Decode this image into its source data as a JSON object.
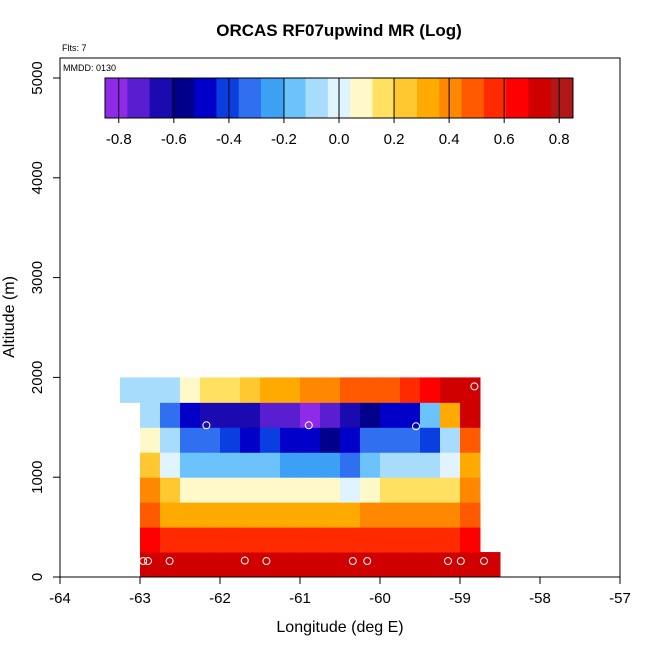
{
  "chart_data": {
    "type": "heatmap",
    "title": "ORCAS RF07upwind MR (Log)",
    "xlabel": "Longitude (deg E)",
    "ylabel": "Altitude (m)",
    "xlim": [
      -64,
      -57
    ],
    "ylim": [
      0,
      5200
    ],
    "x_ticks": [
      -64,
      -63,
      -62,
      -61,
      -60,
      -59,
      -58,
      -57
    ],
    "y_ticks": [
      0,
      1000,
      2000,
      3000,
      4000,
      5000
    ],
    "annotations": {
      "flights": "Flts: 7",
      "date": "MMDD: 0130"
    },
    "colorbar": {
      "range": [
        -0.85,
        0.85
      ],
      "ticks": [
        -0.8,
        -0.6,
        -0.4,
        -0.2,
        0.0,
        0.2,
        0.4,
        0.6,
        0.8
      ],
      "tick_labels": [
        "-0.8",
        "-0.6",
        "-0.4",
        "-0.2",
        "0.0",
        "0.2",
        "0.4",
        "0.6",
        "0.8"
      ],
      "colors": [
        "#8f2be8",
        "#5a1ed1",
        "#1a0ab0",
        "#00008b",
        "#0000c8",
        "#0a3ee0",
        "#2f6ff0",
        "#3ca0f5",
        "#6cc2fa",
        "#a8dcfc",
        "#e0f4ff",
        "#fff8c8",
        "#ffe060",
        "#ffc830",
        "#ffaa00",
        "#ff8800",
        "#ff5a00",
        "#ff2a00",
        "#ff0000",
        "#d00000",
        "#b01818"
      ]
    },
    "grid": {
      "lon_step": 0.25,
      "alt_step": 250,
      "rows": [
        {
          "alt": 125,
          "lon_start": -63.0,
          "values": [
            0.75,
            0.75,
            0.75,
            0.75,
            0.75,
            0.75,
            0.75,
            0.75,
            0.75,
            0.75,
            0.75,
            0.75,
            0.75,
            0.75,
            0.75,
            0.75,
            0.75,
            0.75
          ]
        },
        {
          "alt": 375,
          "lon_start": -63.0,
          "values": [
            0.65,
            0.55,
            0.55,
            0.55,
            0.55,
            0.55,
            0.55,
            0.55,
            0.55,
            0.55,
            0.55,
            0.55,
            0.55,
            0.55,
            0.55,
            0.55,
            0.65
          ]
        },
        {
          "alt": 625,
          "lon_start": -63.0,
          "values": [
            0.5,
            0.35,
            0.35,
            0.35,
            0.35,
            0.35,
            0.35,
            0.3,
            0.3,
            0.3,
            0.35,
            0.4,
            0.4,
            0.4,
            0.4,
            0.4,
            0.5
          ]
        },
        {
          "alt": 875,
          "lon_start": -63.0,
          "values": [
            0.4,
            0.25,
            0.05,
            0.05,
            0.05,
            0.05,
            0.05,
            0.05,
            0.05,
            0.05,
            0.0,
            0.05,
            0.2,
            0.2,
            0.2,
            0.2,
            0.4
          ]
        },
        {
          "alt": 1125,
          "lon_start": -63.0,
          "values": [
            0.25,
            0.0,
            -0.15,
            -0.2,
            -0.2,
            -0.15,
            -0.2,
            -0.25,
            -0.25,
            -0.25,
            -0.3,
            -0.15,
            -0.1,
            -0.05,
            -0.05,
            0.0,
            0.3
          ]
        },
        {
          "alt": 1375,
          "lon_start": -63.0,
          "values": [
            0.05,
            -0.1,
            -0.3,
            -0.35,
            -0.4,
            -0.45,
            -0.4,
            -0.5,
            -0.45,
            -0.55,
            -0.45,
            -0.3,
            -0.3,
            -0.3,
            -0.4,
            -0.1,
            0.5
          ]
        },
        {
          "alt": 1625,
          "lon_start": -63.0,
          "values": [
            -0.1,
            -0.3,
            -0.5,
            -0.65,
            -0.65,
            -0.65,
            -0.7,
            -0.75,
            -0.8,
            -0.7,
            -0.65,
            -0.6,
            -0.5,
            -0.45,
            -0.15,
            0.3,
            0.7
          ]
        },
        {
          "alt": 1875,
          "lon_start": -63.25,
          "values": [
            -0.1,
            -0.1,
            -0.05,
            0.05,
            0.15,
            0.2,
            0.25,
            0.3,
            0.35,
            0.4,
            0.4,
            0.45,
            0.45,
            0.5,
            0.55,
            0.65,
            0.7,
            0.75
          ]
        }
      ]
    },
    "flight_points": [
      {
        "lon": -62.96,
        "alt": 160
      },
      {
        "lon": -62.9,
        "alt": 160
      },
      {
        "lon": -62.63,
        "alt": 160
      },
      {
        "lon": -61.69,
        "alt": 165
      },
      {
        "lon": -61.42,
        "alt": 160
      },
      {
        "lon": -60.34,
        "alt": 160
      },
      {
        "lon": -60.16,
        "alt": 160
      },
      {
        "lon": -59.15,
        "alt": 160
      },
      {
        "lon": -58.99,
        "alt": 160
      },
      {
        "lon": -58.7,
        "alt": 160
      },
      {
        "lon": -62.17,
        "alt": 1520
      },
      {
        "lon": -60.89,
        "alt": 1520
      },
      {
        "lon": -59.55,
        "alt": 1510
      },
      {
        "lon": -58.82,
        "alt": 1910
      }
    ]
  }
}
